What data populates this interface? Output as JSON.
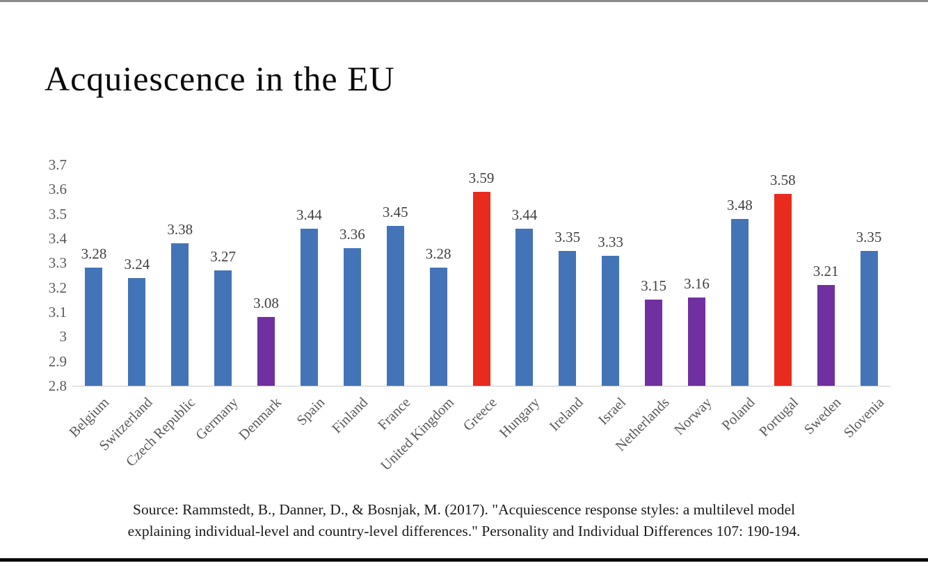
{
  "page": {
    "title": "Acquiescence in the EU",
    "source_line1": "Source: Rammstedt, B., Danner, D., & Bosnjak, M. (2017). \"Acquiescence response styles: a multilevel model",
    "source_line2": "explaining individual-level and country-level differences.\" Personality and Individual Differences 107: 190-194."
  },
  "colors": {
    "bar_blue": "#4374B7",
    "bar_purple": "#7030A0",
    "bar_red": "#E92B1E",
    "axis_text": "#595959",
    "data_label_text": "#3F3F3F",
    "axis_line": "#C9C9C9",
    "top_rule": "#8C8C8C",
    "bottom_rule": "#0A0A0A"
  },
  "chart_data": {
    "type": "bar",
    "title": "Acquiescence in the EU",
    "categories": [
      "Belgium",
      "Switzerland",
      "Czech Republic",
      "Germany",
      "Denmark",
      "Spain",
      "Finland",
      "France",
      "United Kingdom",
      "Greece",
      "Hungary",
      "Ireland",
      "Israel",
      "Netherlands",
      "Norway",
      "Poland",
      "Portugal",
      "Sweden",
      "Slovenia"
    ],
    "values": [
      3.28,
      3.24,
      3.38,
      3.27,
      3.08,
      3.44,
      3.36,
      3.45,
      3.28,
      3.59,
      3.44,
      3.35,
      3.33,
      3.15,
      3.16,
      3.48,
      3.58,
      3.21,
      3.35
    ],
    "data_labels": [
      "3.28",
      "3.24",
      "3.38",
      "3.27",
      "3.08",
      "3.44",
      "3.36",
      "3.45",
      "3.28",
      "3.59",
      "3.44",
      "3.35",
      "3.33",
      "3.15",
      "3.16",
      "3.48",
      "3.58",
      "3.21",
      "3.35"
    ],
    "bar_colors": [
      "#4374B7",
      "#4374B7",
      "#4374B7",
      "#4374B7",
      "#7030A0",
      "#4374B7",
      "#4374B7",
      "#4374B7",
      "#4374B7",
      "#E92B1E",
      "#4374B7",
      "#4374B7",
      "#4374B7",
      "#7030A0",
      "#7030A0",
      "#4374B7",
      "#E92B1E",
      "#7030A0",
      "#4374B7"
    ],
    "xlabel": "",
    "ylabel": "",
    "ylim": [
      2.8,
      3.7
    ],
    "y_ticks": [
      {
        "v": 2.8,
        "label": "2.8"
      },
      {
        "v": 2.9,
        "label": "2.9"
      },
      {
        "v": 3.0,
        "label": "3"
      },
      {
        "v": 3.1,
        "label": "3.1"
      },
      {
        "v": 3.2,
        "label": "3.2"
      },
      {
        "v": 3.3,
        "label": "3.3"
      },
      {
        "v": 3.4,
        "label": "3.4"
      },
      {
        "v": 3.5,
        "label": "3.5"
      },
      {
        "v": 3.6,
        "label": "3.6"
      },
      {
        "v": 3.7,
        "label": "3.7"
      },
      {
        "v": 3.8,
        "label": ""
      }
    ],
    "grid": false,
    "legend": false
  }
}
